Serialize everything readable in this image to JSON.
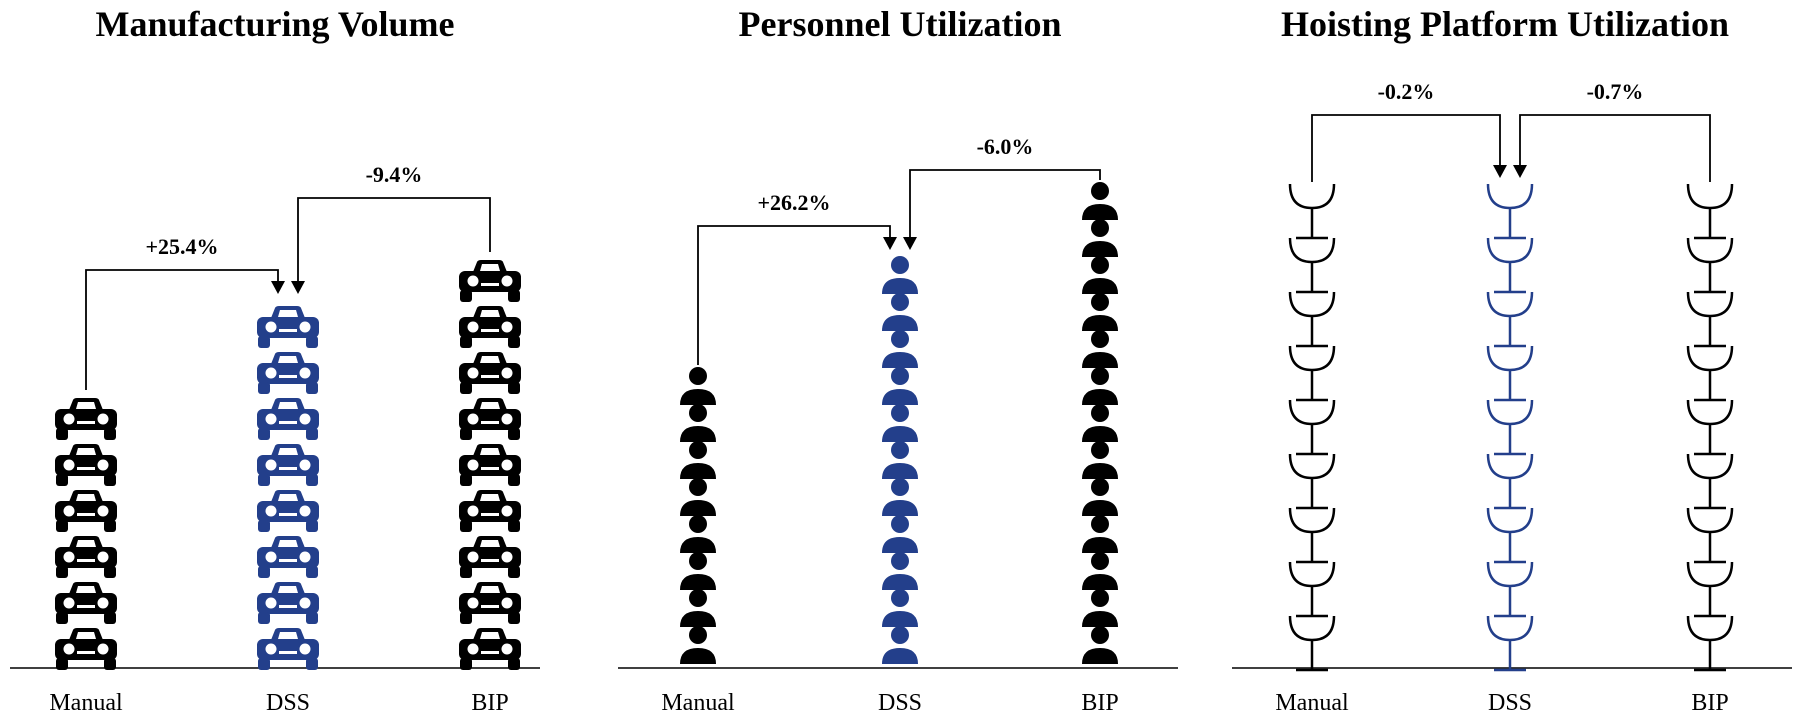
{
  "colors": {
    "base": "#000000",
    "highlight": "#233f8b"
  },
  "chart_data": [
    {
      "type": "pictograph",
      "title": "Manufacturing Volume",
      "icon": "car-icon",
      "categories": [
        "Manual",
        "DSS",
        "BIP"
      ],
      "values": [
        6,
        8,
        9
      ],
      "highlight": "DSS",
      "annotations": [
        {
          "from": "Manual",
          "to": "DSS",
          "label": "+25.4%"
        },
        {
          "from": "BIP",
          "to": "DSS",
          "label": "-9.4%"
        }
      ]
    },
    {
      "type": "pictograph",
      "title": "Personnel Utilization",
      "icon": "person-icon",
      "categories": [
        "Manual",
        "DSS",
        "BIP"
      ],
      "values": [
        8,
        11,
        13
      ],
      "highlight": "DSS",
      "annotations": [
        {
          "from": "Manual",
          "to": "DSS",
          "label": "+26.2%"
        },
        {
          "from": "BIP",
          "to": "DSS",
          "label": "-6.0%"
        }
      ]
    },
    {
      "type": "pictograph",
      "title": "Hoisting Platform Utilization",
      "icon": "hoist-platform-icon",
      "categories": [
        "Manual",
        "DSS",
        "BIP"
      ],
      "values": [
        9,
        9,
        9
      ],
      "highlight": "DSS",
      "annotations": [
        {
          "from": "Manual",
          "to": "DSS",
          "label": "-0.2%"
        },
        {
          "from": "BIP",
          "to": "DSS",
          "label": "-0.7%"
        }
      ]
    }
  ]
}
